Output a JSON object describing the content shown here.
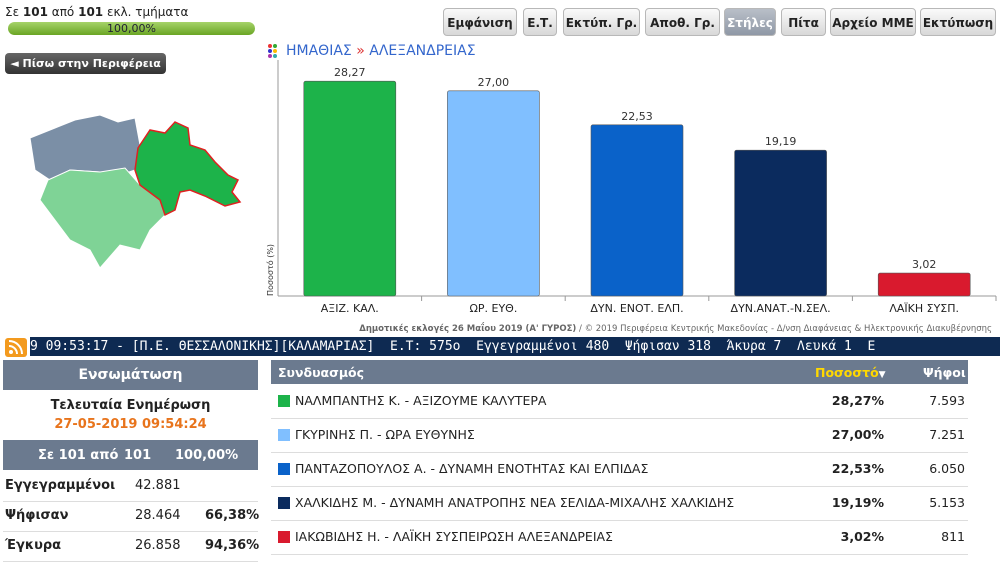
{
  "header": {
    "status": {
      "prefix": "Σε",
      "counted": "101",
      "middle": "από",
      "total": "101",
      "suffix": "εκλ. τμήματα"
    },
    "progress_label": "100,00%",
    "buttons": [
      "Εμφάνιση",
      "Ε.Τ.",
      "Εκτύπ. Γρ.",
      "Αποθ. Γρ.",
      "Στήλες",
      "Πίτα",
      "Αρχείο ΜΜΕ",
      "Εκτύπωση"
    ],
    "back_button": "◄ Πίσω στην Περιφέρεια"
  },
  "breadcrumb": {
    "region": "ΗΜΑΘΙΑΣ",
    "separator": "»",
    "municipality": "ΑΛΕΞΑΝΔΡΕΙΑΣ"
  },
  "chart_data": {
    "type": "bar",
    "y_label": "Ποσοστό (%)",
    "categories": [
      "ΑΞΙΖ. ΚΑΛ.",
      "ΩΡ. ΕΥΘ.",
      "ΔΥΝ. ΕΝΟΤ. ΕΛΠ.",
      "ΔΥΝ.ΑΝΑΤ.-Ν.ΣΕΛ.",
      "ΛΑΪΚΗ ΣΥΣΠ."
    ],
    "values": [
      28.27,
      27.0,
      22.53,
      19.19,
      3.02
    ],
    "value_labels": [
      "28,27",
      "27,00",
      "22,53",
      "19,19",
      "3,02"
    ],
    "colors": [
      "#1db34a",
      "#80bfff",
      "#0a62c9",
      "#0b2b5e",
      "#d91a2e"
    ],
    "ylim": [
      0,
      30
    ]
  },
  "footer": {
    "election": "Δημοτικές εκλογές 26 Μαΐου 2019 (Α' ΓΥΡΟΣ)",
    "credit": " / © 2019 Περιφέρεια Κεντρικής Μακεδονίας - Δ/νση Διαφάνειας & Ηλεκτρονικής Διακυβέρνησης"
  },
  "ticker": "9 09:53:17 - [Π.Ε. ΘΕΣΣΑΛΟΝΙΚΗΣ][ΚΑΛΑΜΑΡΙΑΣ]  Ε.Τ: 575ο  Εγγεγραμμένοι 480  Ψήφισαν 318  Άκυρα 7  Λευκά 1  Ε",
  "summary": {
    "title": "Ενσωμάτωση",
    "update_label": "Τελευταία Ενημέρωση",
    "update_time": "27-05-2019 09:54:24",
    "head": [
      "Σε 101 από",
      "101",
      "100,00%"
    ],
    "rows": [
      [
        "Εγγεγραμμένοι",
        "42.881",
        ""
      ],
      [
        "Ψήφισαν",
        "28.464",
        "66,38%"
      ],
      [
        "Έγκυρα",
        "26.858",
        "94,36%"
      ]
    ]
  },
  "table": {
    "columns": [
      "Συνδυασμός",
      "Ποσοστό",
      "Ψήφοι"
    ],
    "sort_indicator": "▼",
    "rows": [
      [
        "ΝΑΛΜΠΑΝΤΗΣ Κ. - ΑΞΙΖΟΥΜΕ ΚΑΛΥΤΕΡΑ",
        "28,27%",
        "7.593"
      ],
      [
        "ΓΚΥΡΙΝΗΣ Π. - ΩΡΑ ΕΥΘΥΝΗΣ",
        "27,00%",
        "7.251"
      ],
      [
        "ΠΑΝΤΑΖΟΠΟΥΛΟΣ Α. - ΔΥΝΑΜΗ ΕΝΟΤΗΤΑΣ ΚΑΙ ΕΛΠΙΔΑΣ",
        "22,53%",
        "6.050"
      ],
      [
        "ΧΑΛΚΙΔΗΣ Μ. - ΔΥΝΑΜΗ ΑΝΑΤΡΟΠΗΣ ΝΕΑ ΣΕΛΙΔΑ-ΜΙΧΑΛΗΣ ΧΑΛΚΙΔΗΣ",
        "19,19%",
        "5.153"
      ],
      [
        "ΙΑΚΩΒΙΔΗΣ Η. - ΛΑΪΚΗ ΣΥΣΠΕΙΡΩΣΗ ΑΛΕΞΑΝΔΡΕΙΑΣ",
        "3,02%",
        "811"
      ]
    ]
  }
}
